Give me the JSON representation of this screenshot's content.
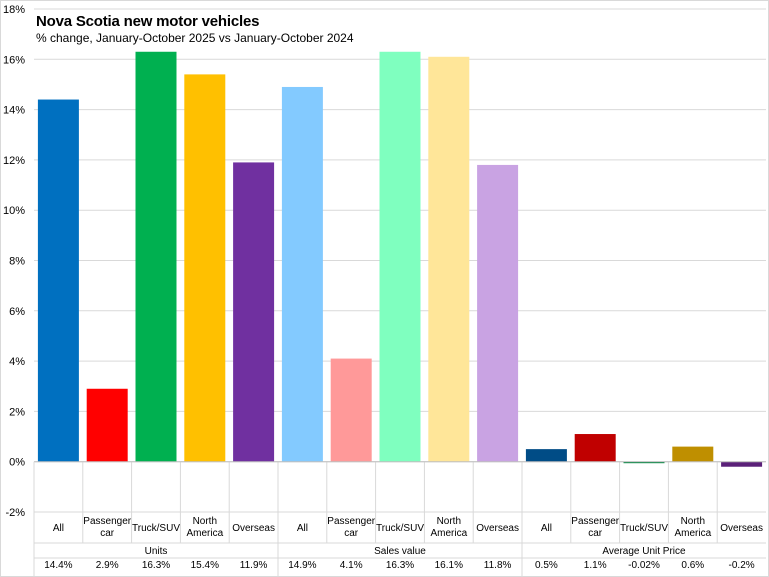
{
  "chart_data": {
    "type": "bar",
    "title": "Nova Scotia new motor vehicles",
    "subtitle": "% change, January-October  2025 vs January-October 2024",
    "xlabel": "",
    "ylabel": "",
    "ylim": [
      -2,
      18
    ],
    "yticks": [
      -2,
      0,
      2,
      4,
      6,
      8,
      10,
      12,
      14,
      16,
      18
    ],
    "ytick_labels": [
      "-2%",
      "0%",
      "2%",
      "4%",
      "6%",
      "8%",
      "10%",
      "12%",
      "14%",
      "16%",
      "18%"
    ],
    "grid": true,
    "legend": "none",
    "groups": [
      {
        "name": "Units",
        "categories": [
          [
            "All"
          ],
          [
            "Passenger",
            "car"
          ],
          [
            "Truck/SUV"
          ],
          [
            "North",
            "America"
          ],
          [
            "Overseas"
          ]
        ],
        "values": [
          14.4,
          2.9,
          16.3,
          15.4,
          11.9
        ],
        "labels": [
          "14.4%",
          "2.9%",
          "16.3%",
          "15.4%",
          "11.9%"
        ],
        "colors": [
          "#0070c0",
          "#ff0000",
          "#00b050",
          "#ffc000",
          "#7030a0"
        ]
      },
      {
        "name": "Sales value",
        "categories": [
          [
            "All"
          ],
          [
            "Passenger",
            "car"
          ],
          [
            "Truck/SUV"
          ],
          [
            "North",
            "America"
          ],
          [
            "Overseas"
          ]
        ],
        "values": [
          14.9,
          4.1,
          16.3,
          16.1,
          11.8
        ],
        "labels": [
          "14.9%",
          "4.1%",
          "16.3%",
          "16.1%",
          "11.8%"
        ],
        "colors": [
          "#83caff",
          "#ff9999",
          "#7fffbf",
          "#ffe699",
          "#c9a3e3"
        ]
      },
      {
        "name": "Average Unit Price",
        "categories": [
          [
            "All"
          ],
          [
            "Passenger",
            "car"
          ],
          [
            "Truck/SUV"
          ],
          [
            "North",
            "America"
          ],
          [
            "Overseas"
          ]
        ],
        "values": [
          0.5,
          1.1,
          -0.02,
          0.6,
          -0.2
        ],
        "labels": [
          "0.5%",
          "1.1%",
          "-0.02%",
          "0.6%",
          "-0.2%"
        ],
        "colors": [
          "#004c86",
          "#c00000",
          "#00843f",
          "#bf8f00",
          "#5a2078"
        ]
      }
    ]
  }
}
